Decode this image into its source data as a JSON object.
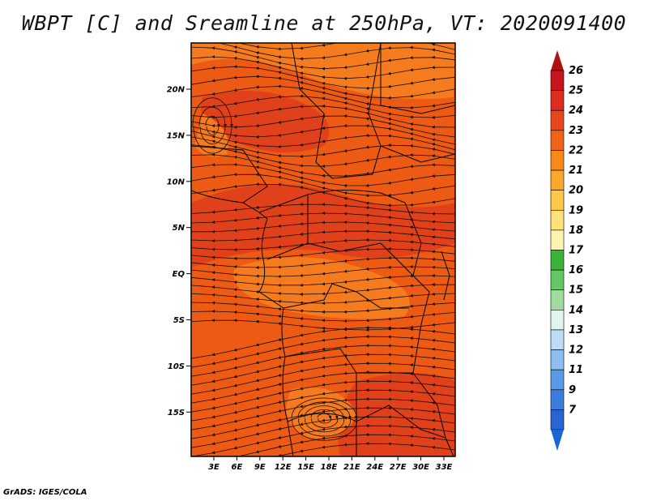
{
  "title": "WBPT [C] and Sreamline at 250hPa, VT: 2020091400",
  "credit": "GrADS: IGES/COLA",
  "colors": {
    "field_main": "#ec5a14",
    "field_warm": "#e1411a",
    "field_cool": "#f57c1e",
    "streamline": "#1a0a00",
    "coastline": "#000000"
  },
  "map": {
    "lat_labels": [
      "20N",
      "15N",
      "10N",
      "5N",
      "EQ",
      "5S",
      "10S",
      "15S"
    ],
    "lon_labels": [
      "3E",
      "6E",
      "9E",
      "12E",
      "15E",
      "18E",
      "21E",
      "24E",
      "27E",
      "30E",
      "33E"
    ]
  },
  "colorbar": {
    "labels": [
      "26",
      "25",
      "24",
      "23",
      "22",
      "21",
      "20",
      "19",
      "18",
      "17",
      "16",
      "15",
      "14",
      "13",
      "12",
      "11",
      "9",
      "7"
    ],
    "top_arrow_color": "#b01010",
    "bottom_arrow_color": "#1a64d8",
    "colors": [
      "#c8141e",
      "#dc2d1e",
      "#e8461c",
      "#f0641a",
      "#f88a1a",
      "#fba82a",
      "#fcc848",
      "#fde27a",
      "#fef4b0",
      "#3cb43c",
      "#64c864",
      "#a0dca0",
      "#dff5ee",
      "#bedcf8",
      "#8cbef0",
      "#5a9ae6",
      "#3c7cdc",
      "#2864d2"
    ]
  }
}
